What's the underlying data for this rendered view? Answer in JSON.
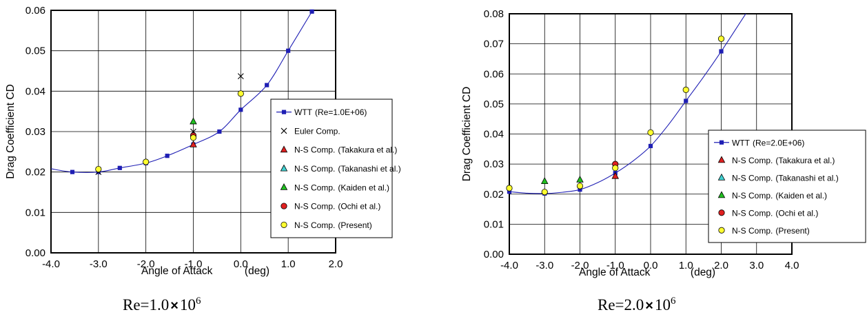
{
  "chart_data": [
    {
      "type": "scatter",
      "xlabel": "Angle of Attack",
      "xunit": "(deg)",
      "ylabel": "Drag Coefficient CD",
      "xlim": [
        -4.0,
        2.0
      ],
      "ylim": [
        0.0,
        0.06
      ],
      "xticks": [
        "-4.0",
        "-3.0",
        "-2.0",
        "-1.0",
        "0.0",
        "1.0",
        "2.0"
      ],
      "yticks": [
        "0.00",
        "0.01",
        "0.02",
        "0.03",
        "0.04",
        "0.05",
        "0.06"
      ],
      "grid": true,
      "legend_placement": "lower-right",
      "caption": {
        "base": "Re=1.0",
        "times": "×",
        "power": "10",
        "exp": "6"
      },
      "series": [
        {
          "name": "WTT",
          "name_extra": "(Re=1.0E+06)",
          "marker": "square-line",
          "color": "#1f1fb4",
          "x": [
            -3.55,
            -3.0,
            -2.55,
            -2.0,
            -1.55,
            -1.0,
            -0.45,
            0.0,
            0.55,
            1.0,
            1.5
          ],
          "y": [
            0.02,
            0.02,
            0.021,
            0.0222,
            0.024,
            0.0268,
            0.03,
            0.0354,
            0.0415,
            0.05,
            0.0597
          ],
          "curve": {
            "x": [
              -4.0,
              -3.55,
              -3.0,
              -2.55,
              -2.0,
              -1.55,
              -1.0,
              -0.45,
              0.0,
              0.55,
              1.0,
              1.5,
              1.55
            ],
            "y": [
              0.0208,
              0.02,
              0.02,
              0.021,
              0.0222,
              0.024,
              0.0268,
              0.03,
              0.0354,
              0.0415,
              0.05,
              0.0597,
              0.0607
            ]
          }
        },
        {
          "name": "Euler Comp.",
          "marker": "x",
          "color": "#000000",
          "x": [
            -3.0,
            -1.0,
            0.0
          ],
          "y": [
            0.02,
            0.03,
            0.0437
          ]
        },
        {
          "name": "N-S Comp.",
          "name_extra": "(Takakura et al.)",
          "marker": "triangle",
          "color": "#e02020",
          "x": [
            -1.0
          ],
          "y": [
            0.0268
          ]
        },
        {
          "name": "N-S Comp.",
          "name_extra": "(Takanashi et al.)",
          "marker": "triangle",
          "color": "#40d0d0",
          "x": [],
          "y": []
        },
        {
          "name": "N-S Comp.",
          "name_extra": "(Kaiden et al.)",
          "marker": "triangle",
          "color": "#20c020",
          "x": [
            -1.0
          ],
          "y": [
            0.0325
          ]
        },
        {
          "name": "N-S Comp.",
          "name_extra": "(Ochi et al.)",
          "marker": "circle",
          "color": "#e02020",
          "x": [
            -1.0
          ],
          "y": [
            0.029
          ]
        },
        {
          "name": "N-S Comp.",
          "name_extra": "(Present)",
          "marker": "circle",
          "color": "#ffff30",
          "x": [
            -3.0,
            -2.0,
            -1.0,
            0.0
          ],
          "y": [
            0.0207,
            0.0225,
            0.0285,
            0.0394
          ]
        }
      ]
    },
    {
      "type": "scatter",
      "xlabel": "Angle of Attack",
      "xunit": "(deg)",
      "ylabel": "Drag Coefficient CD",
      "xlim": [
        -4.0,
        4.0
      ],
      "ylim": [
        0.0,
        0.08
      ],
      "xticks": [
        "-4.0",
        "-3.0",
        "-2.0",
        "-1.0",
        "0.0",
        "1.0",
        "2.0",
        "3.0",
        "4.0"
      ],
      "yticks": [
        "0.00",
        "0.01",
        "0.02",
        "0.03",
        "0.04",
        "0.05",
        "0.06",
        "0.07",
        "0.08"
      ],
      "grid": true,
      "legend_placement": "right",
      "caption": {
        "base": "Re=2.0",
        "times": "×",
        "power": "10",
        "exp": "6"
      },
      "series": [
        {
          "name": "WTT",
          "name_extra": "(Re=2.0E+06)",
          "marker": "square-line",
          "color": "#1f1fb4",
          "x": [
            -4.0,
            -3.0,
            -2.0,
            -1.0,
            0.0,
            1.0,
            2.0
          ],
          "y": [
            0.0208,
            0.0202,
            0.0215,
            0.027,
            0.036,
            0.051,
            0.0675
          ],
          "curve": {
            "x": [
              -4.0,
              -3.5,
              -3.0,
              -2.5,
              -2.0,
              -1.5,
              -1.0,
              -0.5,
              0.0,
              0.5,
              1.0,
              1.5,
              2.0,
              2.5,
              2.75
            ],
            "y": [
              0.0208,
              0.0203,
              0.0202,
              0.0206,
              0.0215,
              0.0238,
              0.027,
              0.031,
              0.036,
              0.043,
              0.051,
              0.059,
              0.0675,
              0.0765,
              0.081
            ]
          }
        },
        {
          "name": "N-S Comp.",
          "name_extra": "(Takakura et al.)",
          "marker": "triangle",
          "color": "#e02020",
          "x": [
            -1.0
          ],
          "y": [
            0.026
          ]
        },
        {
          "name": "N-S Comp.",
          "name_extra": "(Takanashi et al.)",
          "marker": "triangle",
          "color": "#40d0d0",
          "x": [],
          "y": []
        },
        {
          "name": "N-S Comp.",
          "name_extra": "(Kaiden et al.)",
          "marker": "triangle",
          "color": "#20c020",
          "x": [
            -3.0,
            -2.0
          ],
          "y": [
            0.0243,
            0.0248
          ]
        },
        {
          "name": "N-S Comp.",
          "name_extra": "(Ochi et al.)",
          "marker": "circle",
          "color": "#e02020",
          "x": [
            -1.0
          ],
          "y": [
            0.03
          ]
        },
        {
          "name": "N-S Comp.",
          "name_extra": "(Present)",
          "marker": "circle",
          "color": "#ffff30",
          "x": [
            -4.0,
            -3.0,
            -2.0,
            -1.0,
            0.0,
            1.0,
            2.0
          ],
          "y": [
            0.022,
            0.0207,
            0.0227,
            0.0287,
            0.0405,
            0.0547,
            0.0717
          ]
        }
      ]
    }
  ]
}
